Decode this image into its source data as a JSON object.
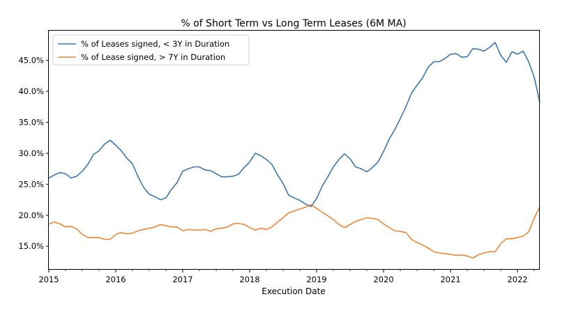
{
  "chart_data": {
    "type": "line",
    "title": "% of Short Term vs Long Term Leases (6M MA)",
    "xlabel": "Execution Date",
    "ylabel": "",
    "x_ticks": [
      "2015",
      "2016",
      "2017",
      "2018",
      "2019",
      "2020",
      "2021",
      "2022"
    ],
    "y_ticks": [
      "15.0%",
      "20.0%",
      "25.0%",
      "30.0%",
      "35.0%",
      "40.0%",
      "45.0%"
    ],
    "xlim": [
      "2015-01",
      "2022-05"
    ],
    "ylim": [
      11.2,
      49.8
    ],
    "grid": false,
    "legend_position": "top-left",
    "series": [
      {
        "name": "% of Leases signed, < 3Y in Duration",
        "color": "#3a76af",
        "points": [
          [
            "2015-01",
            26.0
          ],
          [
            "2015-02",
            26.5
          ],
          [
            "2015-03",
            26.9
          ],
          [
            "2015-04",
            26.7
          ],
          [
            "2015-05",
            26.0
          ],
          [
            "2015-06",
            26.3
          ],
          [
            "2015-07",
            27.1
          ],
          [
            "2015-08",
            28.2
          ],
          [
            "2015-09",
            29.8
          ],
          [
            "2015-10",
            30.4
          ],
          [
            "2015-11",
            31.5
          ],
          [
            "2015-12",
            32.1
          ],
          [
            "2016-01",
            31.3
          ],
          [
            "2016-02",
            30.4
          ],
          [
            "2016-03",
            29.2
          ],
          [
            "2016-04",
            28.3
          ],
          [
            "2016-05",
            26.2
          ],
          [
            "2016-06",
            24.5
          ],
          [
            "2016-07",
            23.4
          ],
          [
            "2016-08",
            23.0
          ],
          [
            "2016-09",
            22.5
          ],
          [
            "2016-10",
            22.8
          ],
          [
            "2016-11",
            24.2
          ],
          [
            "2016-12",
            25.3
          ],
          [
            "2017-01",
            27.1
          ],
          [
            "2017-02",
            27.5
          ],
          [
            "2017-03",
            27.8
          ],
          [
            "2017-04",
            27.8
          ],
          [
            "2017-05",
            27.3
          ],
          [
            "2017-06",
            27.2
          ],
          [
            "2017-07",
            26.7
          ],
          [
            "2017-08",
            26.2
          ],
          [
            "2017-09",
            26.2
          ],
          [
            "2017-10",
            26.3
          ],
          [
            "2017-11",
            26.6
          ],
          [
            "2017-12",
            27.7
          ],
          [
            "2018-01",
            28.6
          ],
          [
            "2018-02",
            30.0
          ],
          [
            "2018-03",
            29.6
          ],
          [
            "2018-04",
            29.0
          ],
          [
            "2018-05",
            28.2
          ],
          [
            "2018-06",
            26.5
          ],
          [
            "2018-07",
            25.1
          ],
          [
            "2018-08",
            23.2
          ],
          [
            "2018-09",
            22.8
          ],
          [
            "2018-10",
            22.4
          ],
          [
            "2018-11",
            21.8
          ],
          [
            "2018-12",
            21.4
          ],
          [
            "2019-01",
            22.7
          ],
          [
            "2019-02",
            24.7
          ],
          [
            "2019-03",
            26.2
          ],
          [
            "2019-04",
            27.8
          ],
          [
            "2019-05",
            29.0
          ],
          [
            "2019-06",
            29.9
          ],
          [
            "2019-07",
            29.1
          ],
          [
            "2019-08",
            27.8
          ],
          [
            "2019-09",
            27.5
          ],
          [
            "2019-10",
            27.0
          ],
          [
            "2019-11",
            27.7
          ],
          [
            "2019-12",
            28.6
          ],
          [
            "2020-01",
            30.3
          ],
          [
            "2020-02",
            32.3
          ],
          [
            "2020-03",
            33.8
          ],
          [
            "2020-04",
            35.6
          ],
          [
            "2020-05",
            37.5
          ],
          [
            "2020-06",
            39.7
          ],
          [
            "2020-07",
            41.0
          ],
          [
            "2020-08",
            42.2
          ],
          [
            "2020-09",
            43.9
          ],
          [
            "2020-10",
            44.8
          ],
          [
            "2020-11",
            44.8
          ],
          [
            "2020-12",
            45.3
          ],
          [
            "2021-01",
            46.0
          ],
          [
            "2021-02",
            46.1
          ],
          [
            "2021-03",
            45.5
          ],
          [
            "2021-04",
            45.6
          ],
          [
            "2021-05",
            46.9
          ],
          [
            "2021-06",
            46.8
          ],
          [
            "2021-07",
            46.5
          ],
          [
            "2021-08",
            47.1
          ],
          [
            "2021-09",
            47.9
          ],
          [
            "2021-10",
            45.8
          ],
          [
            "2021-11",
            44.7
          ],
          [
            "2021-12",
            46.4
          ],
          [
            "2022-01",
            46.0
          ],
          [
            "2022-02",
            46.5
          ],
          [
            "2022-03",
            44.8
          ],
          [
            "2022-04",
            42.3
          ],
          [
            "2022-05",
            38.2
          ]
        ]
      },
      {
        "name": "% of Lease signed, > 7Y in Duration",
        "color": "#ef8532",
        "points": [
          [
            "2015-01",
            18.6
          ],
          [
            "2015-02",
            18.9
          ],
          [
            "2015-03",
            18.6
          ],
          [
            "2015-04",
            18.1
          ],
          [
            "2015-05",
            18.2
          ],
          [
            "2015-06",
            17.8
          ],
          [
            "2015-07",
            16.9
          ],
          [
            "2015-08",
            16.4
          ],
          [
            "2015-09",
            16.4
          ],
          [
            "2015-10",
            16.4
          ],
          [
            "2015-11",
            16.1
          ],
          [
            "2015-12",
            16.1
          ],
          [
            "2016-01",
            16.9
          ],
          [
            "2016-02",
            17.2
          ],
          [
            "2016-03",
            17.0
          ],
          [
            "2016-04",
            17.1
          ],
          [
            "2016-05",
            17.5
          ],
          [
            "2016-06",
            17.7
          ],
          [
            "2016-07",
            17.9
          ],
          [
            "2016-08",
            18.1
          ],
          [
            "2016-09",
            18.5
          ],
          [
            "2016-10",
            18.3
          ],
          [
            "2016-11",
            18.1
          ],
          [
            "2016-12",
            18.1
          ],
          [
            "2017-01",
            17.5
          ],
          [
            "2017-02",
            17.7
          ],
          [
            "2017-03",
            17.6
          ],
          [
            "2017-04",
            17.6
          ],
          [
            "2017-05",
            17.7
          ],
          [
            "2017-06",
            17.4
          ],
          [
            "2017-07",
            17.8
          ],
          [
            "2017-08",
            17.9
          ],
          [
            "2017-09",
            18.1
          ],
          [
            "2017-10",
            18.6
          ],
          [
            "2017-11",
            18.7
          ],
          [
            "2017-12",
            18.5
          ],
          [
            "2018-01",
            18.0
          ],
          [
            "2018-02",
            17.6
          ],
          [
            "2018-03",
            17.9
          ],
          [
            "2018-04",
            17.7
          ],
          [
            "2018-05",
            18.1
          ],
          [
            "2018-06",
            18.9
          ],
          [
            "2018-07",
            19.6
          ],
          [
            "2018-08",
            20.4
          ],
          [
            "2018-09",
            20.7
          ],
          [
            "2018-10",
            21.0
          ],
          [
            "2018-11",
            21.3
          ],
          [
            "2018-12",
            21.7
          ],
          [
            "2019-01",
            21.1
          ],
          [
            "2019-02",
            20.5
          ],
          [
            "2019-03",
            19.9
          ],
          [
            "2019-04",
            19.3
          ],
          [
            "2019-05",
            18.5
          ],
          [
            "2019-06",
            18.0
          ],
          [
            "2019-07",
            18.5
          ],
          [
            "2019-08",
            19.0
          ],
          [
            "2019-09",
            19.3
          ],
          [
            "2019-10",
            19.6
          ],
          [
            "2019-11",
            19.5
          ],
          [
            "2019-12",
            19.3
          ],
          [
            "2020-01",
            18.6
          ],
          [
            "2020-02",
            18.0
          ],
          [
            "2020-03",
            17.5
          ],
          [
            "2020-04",
            17.4
          ],
          [
            "2020-05",
            17.2
          ],
          [
            "2020-06",
            16.1
          ],
          [
            "2020-07",
            15.6
          ],
          [
            "2020-08",
            15.2
          ],
          [
            "2020-09",
            14.7
          ],
          [
            "2020-10",
            14.1
          ],
          [
            "2020-11",
            13.9
          ],
          [
            "2020-12",
            13.8
          ],
          [
            "2021-01",
            13.7
          ],
          [
            "2021-02",
            13.5
          ],
          [
            "2021-03",
            13.6
          ],
          [
            "2021-04",
            13.4
          ],
          [
            "2021-05",
            13.1
          ],
          [
            "2021-06",
            13.6
          ],
          [
            "2021-07",
            13.9
          ],
          [
            "2021-08",
            14.1
          ],
          [
            "2021-09",
            14.1
          ],
          [
            "2021-10",
            15.4
          ],
          [
            "2021-11",
            16.2
          ],
          [
            "2021-12",
            16.2
          ],
          [
            "2022-01",
            16.4
          ],
          [
            "2022-02",
            16.6
          ],
          [
            "2022-03",
            17.3
          ],
          [
            "2022-04",
            19.5
          ],
          [
            "2022-05",
            21.4
          ]
        ]
      }
    ]
  }
}
